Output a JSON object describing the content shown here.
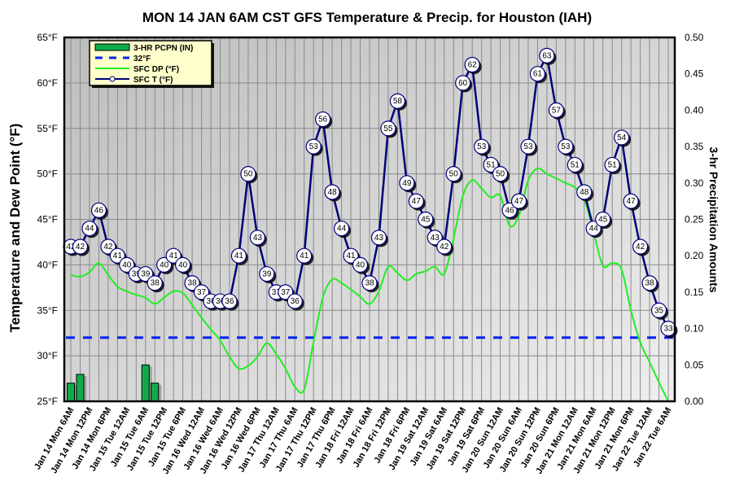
{
  "chart_data": {
    "type": "line",
    "title": "MON 14 JAN 6AM CST GFS Temperature & Precip. for Houston (IAH)",
    "ylabel": "Temperature and Dew Point (°F)",
    "y2label": "3-hr Precipitation Amounts",
    "ylim": [
      25,
      65
    ],
    "y2lim": [
      0,
      0.5
    ],
    "yticks": [
      "25°F",
      "30°F",
      "35°F",
      "40°F",
      "45°F",
      "50°F",
      "55°F",
      "60°F",
      "65°F"
    ],
    "y2ticks": [
      "0.00",
      "0.05",
      "0.10",
      "0.15",
      "0.20",
      "0.25",
      "0.30",
      "0.35",
      "0.40",
      "0.45",
      "0.50"
    ],
    "grid": true,
    "legend_position": "top-left",
    "legend": [
      {
        "name": "3-HR PCPN  (IN)",
        "kind": "bar",
        "color": "#00b050"
      },
      {
        "name": "32°F",
        "kind": "dashed-line",
        "color": "#0022ee"
      },
      {
        "name": "SFC DP (°F)",
        "kind": "line",
        "color": "#22ee22"
      },
      {
        "name": "SFC T (°F)",
        "kind": "line-marker",
        "color": "#00007a"
      }
    ],
    "x_step_hours": 3,
    "x_tick_labels": [
      "Jan 14 Mon 6AM",
      "Jan 14 Mon 12PM",
      "Jan 14 Mon 6PM",
      "Jan 15 Tue 12AM",
      "Jan 15 Tue 6AM",
      "Jan 15 Tue 12PM",
      "Jan 15 Tue 6PM",
      "Jan 16 Wed 12AM",
      "Jan 16 Wed 6AM",
      "Jan 16 Wed 12PM",
      "Jan 16 Wed 6PM",
      "Jan 17 Thu 12AM",
      "Jan 17 Thu 6AM",
      "Jan 17 Thu 12PM",
      "Jan 17 Thu 6PM",
      "Jan 18 Fri 12AM",
      "Jan 18 Fri 6AM",
      "Jan 18 Fri 12PM",
      "Jan 18 Fri 6PM",
      "Jan 19 Sat 12AM",
      "Jan 19 Sat 6AM",
      "Jan 19 Sat 12PM",
      "Jan 19 Sat 6PM",
      "Jan 20 Sun 12AM",
      "Jan 20 Sun 6AM",
      "Jan 20 Sun 12PM",
      "Jan 20 Sun 6PM",
      "Jan 21 Mon 12AM",
      "Jan 21 Mon 6AM",
      "Jan 21 Mon 12PM",
      "Jan 21 Mon 6PM",
      "Jan 22 Tue 12AM",
      "Jan 22 Tue 6AM"
    ],
    "series": [
      {
        "name": "SFC T (°F)",
        "values": [
          42,
          42,
          44,
          46,
          42,
          41,
          40,
          39,
          39,
          38,
          40,
          41,
          40,
          38,
          37,
          36,
          36,
          36,
          41,
          50,
          43,
          39,
          37,
          37,
          36,
          41,
          53,
          56,
          48,
          44,
          41,
          40,
          38,
          43,
          55,
          58,
          49,
          47,
          45,
          43,
          42,
          50,
          60,
          62,
          53,
          51,
          50,
          46,
          47,
          53,
          61,
          63,
          57,
          53,
          51,
          48,
          44,
          45,
          51,
          54,
          47,
          42,
          38,
          35,
          33
        ]
      },
      {
        "name": "SFC DP (°F)",
        "values": [
          38.9,
          38.7,
          39.2,
          40.2,
          38.9,
          37.6,
          37.1,
          36.7,
          36.4,
          35.7,
          36.4,
          37.1,
          36.9,
          35.6,
          34.2,
          32.9,
          31.7,
          29.9,
          28.6,
          28.9,
          29.9,
          31.4,
          30.2,
          28.6,
          26.6,
          26.3,
          31.5,
          36.4,
          38.4,
          38.0,
          37.3,
          36.5,
          35.7,
          37.1,
          39.8,
          39.1,
          38.3,
          39.0,
          39.3,
          39.8,
          39.0,
          42.9,
          47.6,
          49.3,
          48.4,
          47.4,
          47.6,
          44.3,
          45.4,
          49.3,
          50.6,
          50.0,
          49.5,
          49.0,
          48.5,
          47.2,
          43.6,
          39.9,
          40.2,
          39.5,
          35.0,
          31.5,
          29.3,
          27.1,
          24.8
        ]
      },
      {
        "name": "32°F",
        "values": [
          32
        ]
      },
      {
        "name": "3-HR PCPN (IN)",
        "values": [
          0.025,
          0.037,
          0,
          0,
          0,
          0,
          0,
          0,
          0.05,
          0.025,
          0,
          0,
          0,
          0,
          0,
          0,
          0,
          0,
          0,
          0,
          0,
          0,
          0,
          0,
          0,
          0,
          0,
          0,
          0,
          0,
          0,
          0,
          0,
          0,
          0,
          0,
          0,
          0,
          0,
          0,
          0,
          0,
          0,
          0,
          0,
          0,
          0,
          0,
          0,
          0,
          0,
          0,
          0,
          0,
          0,
          0,
          0,
          0,
          0,
          0,
          0,
          0,
          0,
          0,
          0
        ]
      }
    ]
  }
}
